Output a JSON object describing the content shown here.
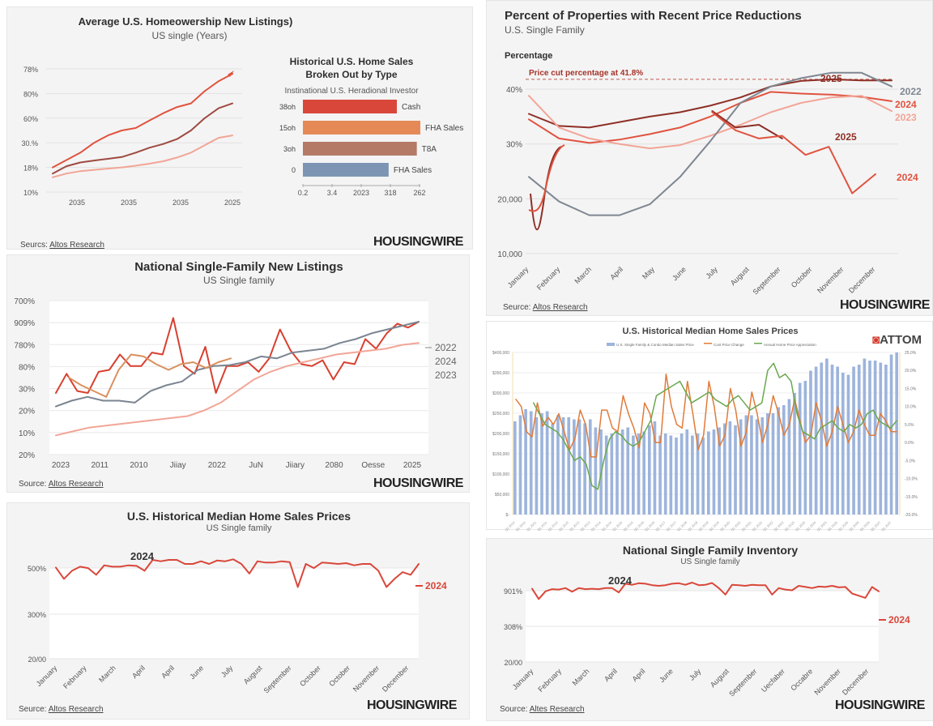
{
  "branding": {
    "logo": "HOUSINGWIRE",
    "attom_logo": "ATTOM",
    "source_prefix": "Seurce:",
    "source_name": "Altos Research"
  },
  "chart_data": [
    {
      "id": "homeownership",
      "type": "line",
      "title": "Average U.S. Homeowership New Listings)",
      "subtitle": "US single (Years)",
      "source": {
        "prefix": "Seurcs:",
        "name": "Altos Research"
      },
      "yticks": [
        "10%",
        "18%",
        "30.%",
        "60%",
        "80%",
        "78%"
      ],
      "xticks": [
        "2035",
        "2035",
        "2035",
        "2025"
      ],
      "ylim": [
        0,
        5
      ],
      "series": [
        {
          "name": "top",
          "color": "#e0533f",
          "values": [
            1.0,
            1.3,
            1.6,
            2.0,
            2.3,
            2.5,
            2.6,
            2.9,
            3.2,
            3.45,
            3.6,
            4.1,
            4.5,
            4.8
          ]
        },
        {
          "name": "middle",
          "color": "#9e4a40",
          "values": [
            0.75,
            1.05,
            1.2,
            1.28,
            1.35,
            1.42,
            1.6,
            1.8,
            1.95,
            2.15,
            2.5,
            3.0,
            3.4,
            3.6
          ]
        },
        {
          "name": "bottom",
          "color": "#f2a597",
          "values": [
            0.6,
            0.75,
            0.85,
            0.9,
            0.95,
            1.0,
            1.07,
            1.15,
            1.25,
            1.4,
            1.6,
            1.9,
            2.2,
            2.3
          ]
        }
      ]
    },
    {
      "id": "sales-by-type",
      "type": "bar",
      "title": "Historical U.S. Home Sales",
      "title2": "Broken Out by Type",
      "subtitle": "Instinational U.S. Heradional Investor",
      "categories": [
        "38oh",
        "15oh",
        "3oh",
        "0"
      ],
      "bar_labels": [
        "Cash",
        "FHA Sales",
        "T8A",
        "FHA Sales"
      ],
      "values": [
        0.8,
        1.0,
        0.97,
        0.73
      ],
      "colors": [
        "#d9473a",
        "#e58a57",
        "#b47a66",
        "#7d95b3"
      ],
      "xticks": [
        "0.2",
        "3.4",
        "2023",
        "318",
        "262"
      ]
    },
    {
      "id": "price-reductions",
      "type": "line",
      "title": "Percent of Properties with Recent Price Reductions",
      "subtitle": "U.S. Single Family",
      "ylabel": "Percentage",
      "annotation": "Price cut percentage at 41.8%",
      "annotation_value": 41.8,
      "yticks": [
        {
          "label": "10,000",
          "v": 10
        },
        {
          "label": "20,000",
          "v": 20
        },
        {
          "label": "30%",
          "v": 30
        },
        {
          "label": "40%",
          "v": 40
        }
      ],
      "ylim": [
        10,
        44
      ],
      "xticks": [
        "January",
        "February",
        "March",
        "April",
        "May",
        "June",
        "July",
        "August",
        "September",
        "October",
        "November",
        "December"
      ],
      "series": [
        {
          "name": "2025",
          "color": "#8e2f26",
          "label": "2025",
          "values": [
            35.5,
            33.3,
            33,
            34,
            35,
            35.8,
            37,
            38.5,
            40.5,
            41.5,
            41.8,
            41.6,
            41.6
          ]
        },
        {
          "name": "2024",
          "color": "#e0533f",
          "label": "2024",
          "values": [
            34.5,
            31,
            30.2,
            30.8,
            31.8,
            33,
            35,
            37.5,
            39.5,
            39.2,
            39,
            38.6,
            37.8
          ]
        },
        {
          "name": "2023",
          "color": "#f2a597",
          "label": "2023",
          "values": [
            38.8,
            33,
            31,
            30,
            29.2,
            29.8,
            31.5,
            33.5,
            35.8,
            37.5,
            38.5,
            38.8,
            36
          ]
        },
        {
          "name": "2022",
          "color": "#7f8792",
          "label": "2022",
          "values": [
            24,
            19.5,
            17,
            17,
            19,
            24,
            30.5,
            37.5,
            40.5,
            42,
            43,
            43,
            40.5
          ]
        },
        {
          "name": "2025 dip",
          "color": "#8e2f26",
          "label": "2025",
          "values": [
            null,
            null,
            null,
            null,
            null,
            null,
            null,
            null,
            36,
            33,
            33.5,
            31
          ]
        },
        {
          "name": "2024 dip",
          "color": "#e0533f",
          "label": "2024",
          "values": [
            null,
            null,
            null,
            null,
            null,
            null,
            null,
            null,
            35.8,
            32.5,
            31,
            31.5,
            28,
            29.5,
            21,
            24.5
          ]
        }
      ]
    },
    {
      "id": "new-listings",
      "type": "line",
      "title": "National Single-Family New Listings",
      "subtitle": "US Single family",
      "source": {
        "prefix": "Source:",
        "name": "Altos Research"
      },
      "yticks": [
        "20%",
        "10%",
        "20%",
        "30%",
        "80%",
        "780%",
        "909%",
        "700%"
      ],
      "xticks": [
        "2023",
        "2011",
        "2010",
        "Jiiay",
        "2022",
        "JuN",
        "Jiiary",
        "2080",
        "Oesse",
        "2025"
      ],
      "legend": [
        "2022",
        "2024",
        "2023"
      ],
      "series": [
        {
          "name": "2024",
          "color": "#d8402f",
          "values": [
            3.2,
            4.2,
            3.3,
            3.2,
            4.3,
            4.4,
            5.2,
            4.6,
            4.6,
            5.3,
            5.2,
            7.1,
            4.6,
            4.2,
            5.6,
            3.2,
            4.6,
            4.6,
            4.8,
            4.3,
            5.0,
            6.5,
            5.4,
            4.7,
            4.6,
            4.9,
            3.9,
            4.8,
            4.7,
            6.0,
            5.5,
            6.3,
            6.8,
            6.6,
            6.9
          ]
        },
        {
          "name": "2022",
          "color": "#7b8592",
          "values": [
            2.5,
            2.8,
            3.0,
            2.8,
            2.8,
            2.7,
            3.3,
            3.6,
            3.8,
            4.4,
            4.6,
            4.65,
            4.8,
            5.1,
            5.0,
            5.3,
            5.4,
            5.5,
            5.8,
            6.0,
            6.3,
            6.5,
            6.7,
            6.9
          ]
        },
        {
          "name": "2023",
          "color": "#f2a597",
          "values": [
            1.0,
            1.2,
            1.4,
            1.5,
            1.6,
            1.7,
            1.8,
            1.9,
            2.0,
            2.3,
            2.7,
            3.3,
            3.9,
            4.3,
            4.6,
            4.8,
            5.0,
            5.2,
            5.3,
            5.4,
            5.5,
            5.7,
            5.8
          ]
        },
        {
          "name": "2023b",
          "color": "#d9905f",
          "values": [
            4.0,
            3.6,
            3.3,
            3.0,
            4.4,
            5.2,
            5.1,
            4.7,
            4.4,
            4.7,
            4.8,
            4.5,
            4.8,
            5.0
          ]
        }
      ]
    },
    {
      "id": "median-prices",
      "type": "line",
      "title": "U.S. Historical Median Home Sales Prices",
      "subtitle": "US Single family",
      "source": {
        "prefix": "Seurce:",
        "name": "Altos Research"
      },
      "annotation": "2024",
      "end_label": "2024",
      "yticks": [
        "20/00",
        "300%",
        "500%"
      ],
      "ylim": [
        0,
        2
      ],
      "xticks": [
        "January",
        "February",
        "March",
        "April",
        "April",
        "June",
        "July",
        "August",
        "September",
        "October",
        "October",
        "November",
        "December"
      ],
      "series": [
        {
          "name": "2024",
          "color": "#d9473a",
          "values": [
            1.72,
            1.3,
            1.6,
            1.75,
            1.7,
            1.45,
            1.8,
            1.75,
            1.75,
            1.8,
            1.78,
            1.6,
            2.0,
            1.95,
            2.0,
            2.0,
            1.85,
            1.85,
            1.95,
            1.85,
            1.98,
            1.95,
            2.02,
            1.85,
            1.5,
            1.95,
            1.9,
            1.9,
            1.95,
            1.92,
            1.0,
            1.85,
            1.7,
            1.9,
            1.88,
            1.85,
            1.88,
            1.8,
            1.85,
            1.85,
            1.6,
            1.0,
            1.3,
            1.55,
            1.45,
            1.85
          ]
        }
      ]
    },
    {
      "id": "attom-median",
      "type": "bar",
      "title": "U.S. Historical Median Home Sales Prices",
      "legend": [
        "U.S. Single Family & Condo Median Sales Price",
        "Cost Price Change",
        "Annual Home Price Appreciation"
      ],
      "yticks_left": [
        "$-",
        "$50,000",
        "$100,000",
        "$150,000",
        "$200,000",
        "$250,000",
        "$300,000",
        "$350,000",
        "$400,000"
      ],
      "yticks_right": [
        "-20.0%",
        "-15.0%",
        "-10.0%",
        "-5.0%",
        "0.0%",
        "5.0%",
        "10.0%",
        "15.0%",
        "20.0%",
        "25.0%"
      ],
      "bars": [
        230,
        245,
        260,
        255,
        240,
        250,
        255,
        225,
        245,
        240,
        240,
        235,
        235,
        225,
        235,
        215,
        210,
        195,
        200,
        205,
        210,
        215,
        195,
        200,
        205,
        220,
        230,
        195,
        200,
        195,
        190,
        200,
        210,
        195,
        200,
        190,
        205,
        210,
        215,
        225,
        230,
        220,
        235,
        245,
        245,
        235,
        240,
        250,
        250,
        265,
        270,
        285,
        300,
        325,
        330,
        355,
        365,
        375,
        385,
        370,
        365,
        350,
        345,
        365,
        370,
        385,
        380,
        380,
        375,
        370,
        395,
        400
      ],
      "series": [
        {
          "name": "Cost Price Change",
          "color": "#e07b3a",
          "values": [
            12,
            10,
            3,
            1.5,
            11,
            4.5,
            7,
            5,
            8,
            3,
            -2,
            1,
            9,
            5,
            -4,
            -4,
            9,
            9,
            4,
            3,
            13,
            8,
            4,
            -1.5,
            11,
            8,
            0,
            0,
            19,
            10,
            5,
            4,
            17,
            8,
            -2,
            2,
            17,
            10,
            -1,
            2,
            15,
            9,
            -1,
            3,
            14,
            8,
            0,
            5,
            13,
            8,
            2,
            5,
            12,
            6,
            0,
            2,
            11,
            6,
            -1,
            3,
            10,
            5,
            0,
            3,
            9,
            5,
            2,
            2,
            8,
            6,
            3,
            3
          ]
        },
        {
          "name": "Annual Home Price Appreciation",
          "color": "#6aa84f",
          "values": [
            null,
            null,
            null,
            11,
            8,
            5,
            4,
            3,
            1,
            -2,
            -5,
            -4,
            -6,
            -12,
            -13,
            -5,
            1,
            3,
            2,
            0,
            -1,
            0,
            3,
            6,
            13,
            14,
            15,
            16,
            17,
            14,
            11,
            12,
            13,
            14,
            12,
            11,
            10,
            12,
            13,
            11,
            9,
            10,
            11,
            20,
            22,
            18,
            19,
            17,
            8,
            3,
            2,
            1,
            4,
            5,
            6,
            4,
            3,
            5,
            4,
            5,
            8,
            9,
            6,
            5,
            4,
            6
          ]
        }
      ]
    },
    {
      "id": "inventory",
      "type": "line",
      "title": "National Single Family Inventory",
      "subtitle": "US Single family",
      "source": {
        "prefix": "Source:",
        "name": "Altes Research"
      },
      "annotation": "2024",
      "end_label": "2024",
      "yticks": [
        "20/00",
        "308%",
        "901%"
      ],
      "ylim": [
        0,
        2
      ],
      "xticks": [
        "January",
        "February",
        "March",
        "April",
        "April",
        "June",
        "July",
        "August",
        "September",
        "Uecfaber",
        "Occabre",
        "November",
        "December"
      ],
      "series": [
        {
          "name": "2024",
          "color": "#d9473a",
          "values": [
            1.72,
            1.25,
            1.6,
            1.7,
            1.68,
            1.75,
            1.58,
            1.75,
            1.7,
            1.72,
            1.7,
            1.75,
            1.75,
            1.55,
            1.95,
            1.9,
            1.97,
            1.95,
            1.88,
            1.85,
            1.88,
            1.95,
            1.97,
            1.9,
            2.0,
            1.88,
            1.9,
            1.98,
            1.75,
            1.45,
            1.9,
            1.88,
            1.85,
            1.9,
            1.88,
            1.88,
            1.45,
            1.75,
            1.68,
            1.65,
            1.85,
            1.8,
            1.75,
            1.82,
            1.8,
            1.85,
            1.78,
            1.8,
            1.5,
            1.4,
            1.3,
            1.8,
            1.6
          ]
        }
      ]
    }
  ]
}
